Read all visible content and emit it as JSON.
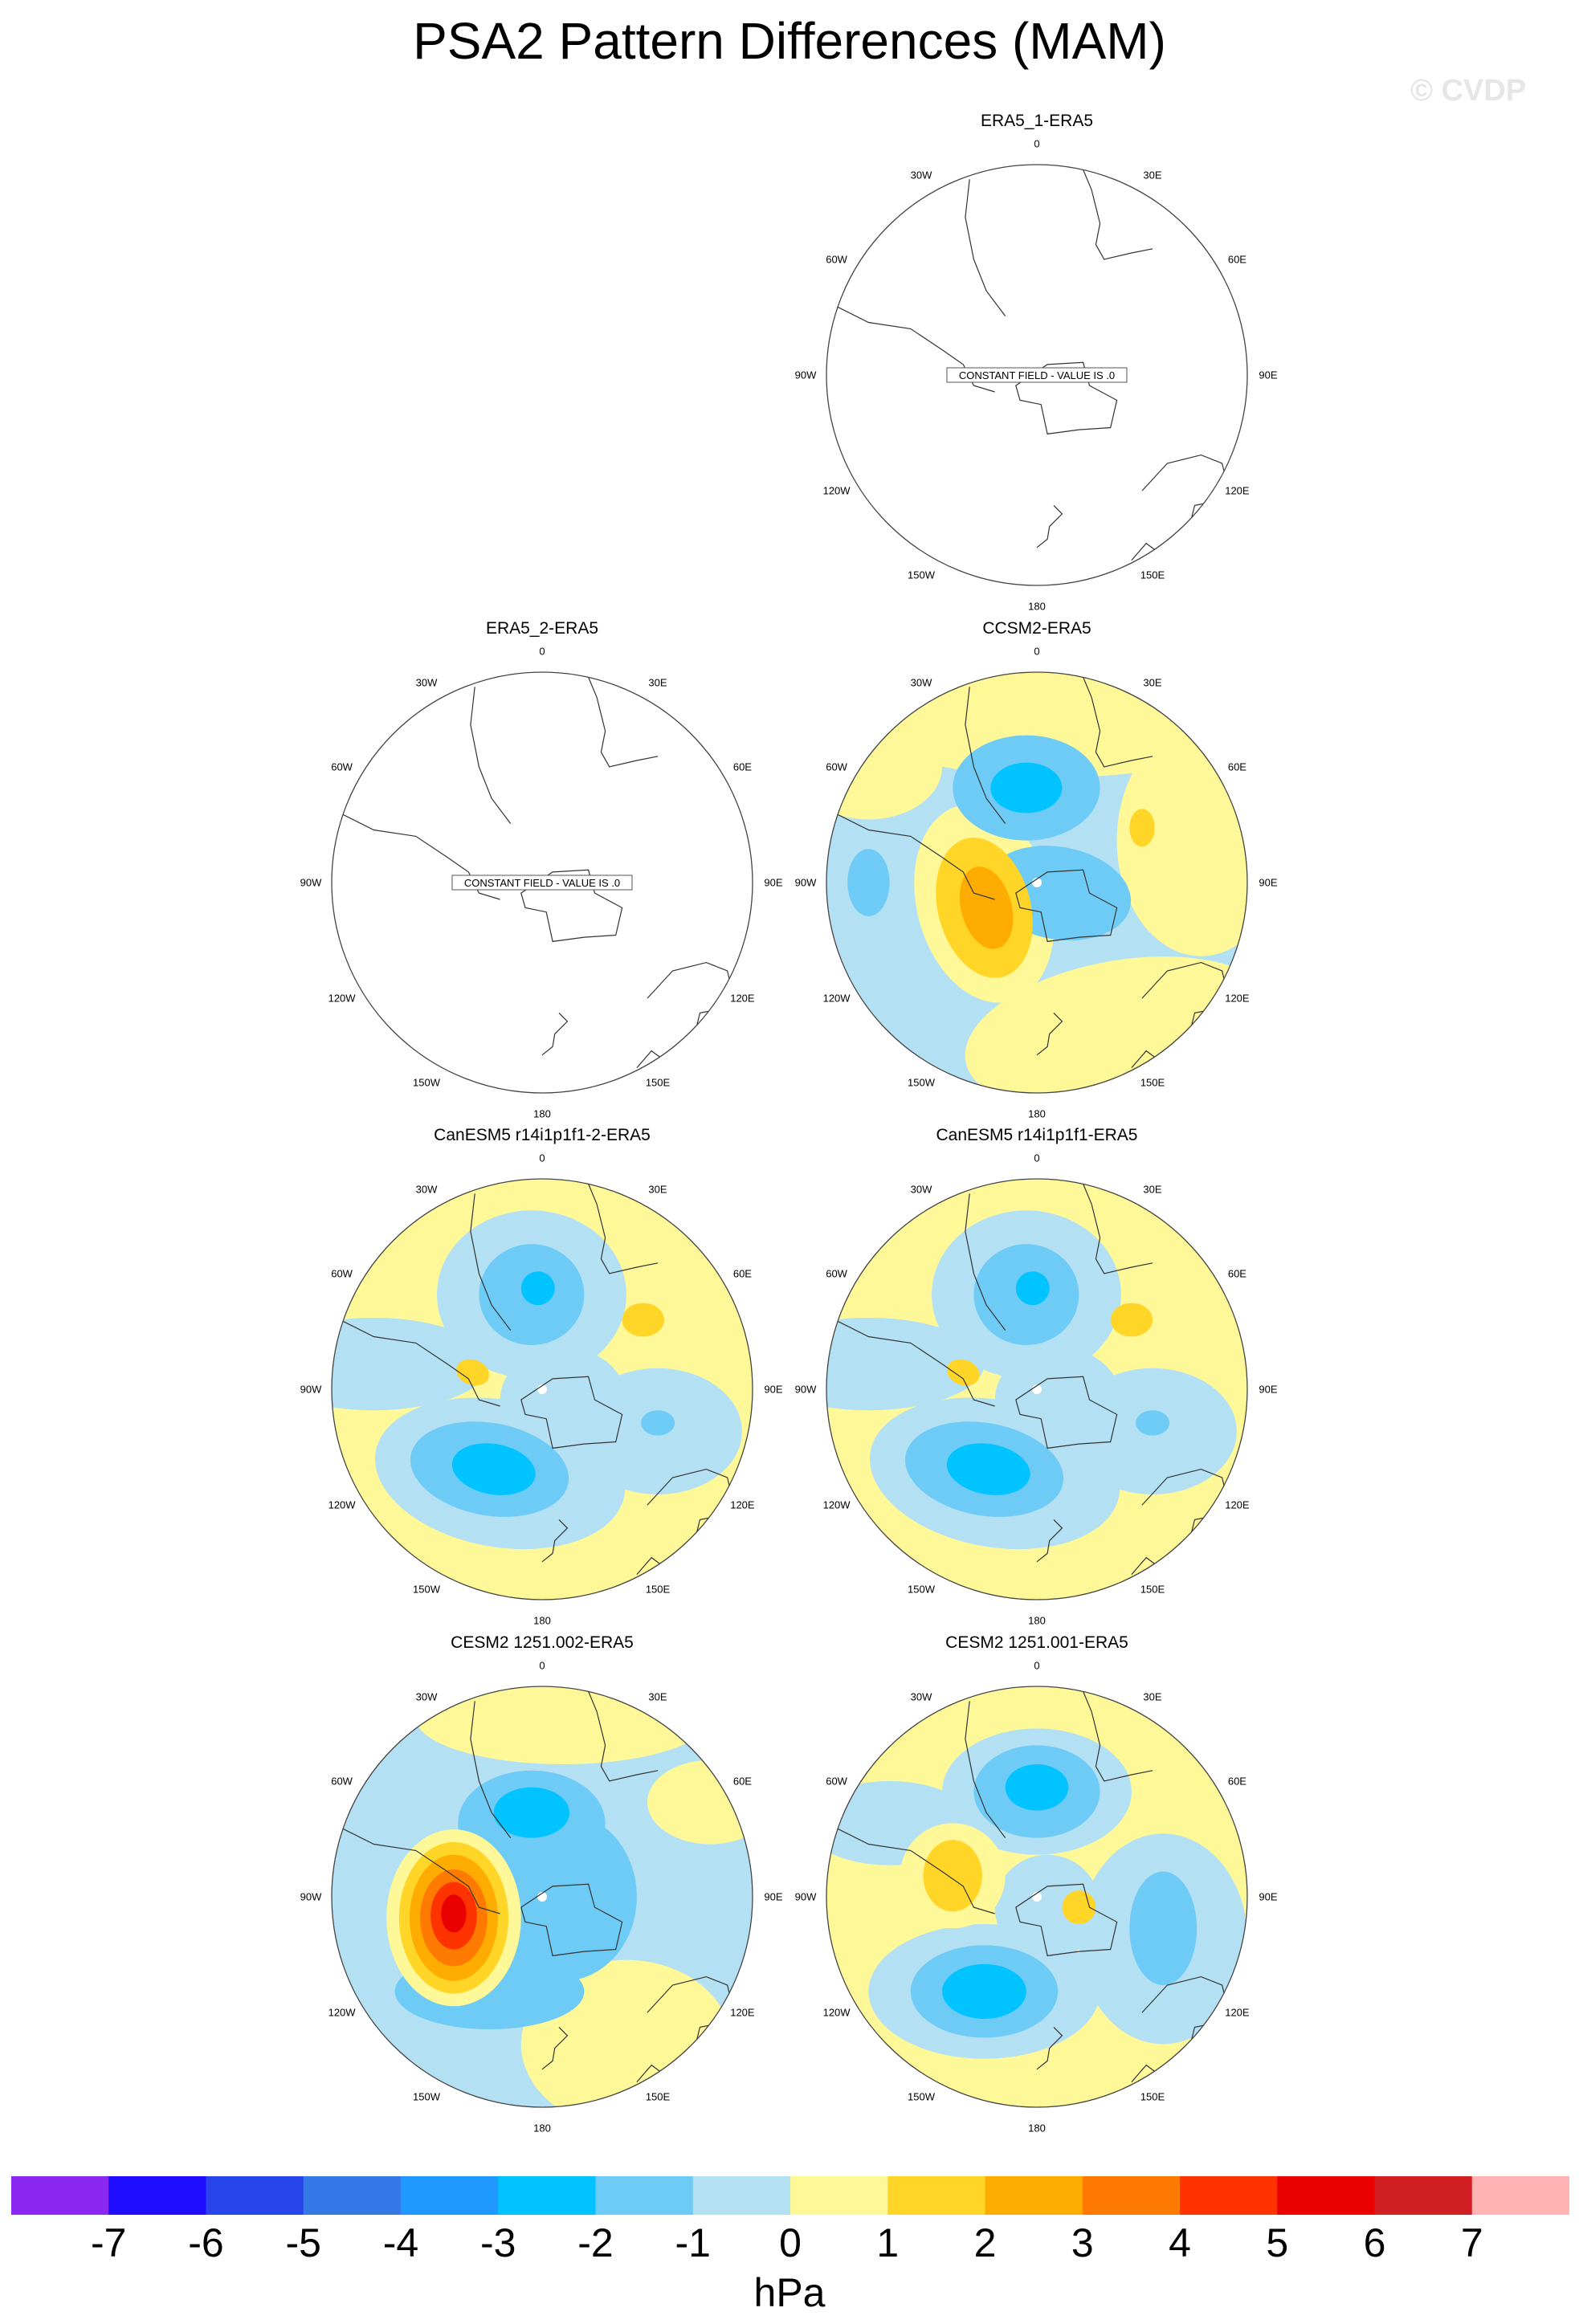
{
  "title": "PSA2 Pattern Differences (MAM)",
  "watermark": "© CVDP",
  "longitude_labels": [
    "0",
    "30E",
    "60E",
    "90E",
    "120E",
    "150E",
    "180",
    "150W",
    "120W",
    "90W",
    "60W",
    "30W"
  ],
  "constant_field_message": "CONSTANT FIELD - VALUE IS .0",
  "panels": [
    {
      "title": "ERA5_1-ERA5",
      "constant": true
    },
    {
      "title": "ERA5_2-ERA5",
      "constant": true
    },
    {
      "title": "CCSM2-ERA5",
      "constant": false
    },
    {
      "title": "CanESM5 r14i1p1f1-2-ERA5",
      "constant": false
    },
    {
      "title": "CanESM5 r14i1p1f1-ERA5",
      "constant": false
    },
    {
      "title": "CESM2 1251.002-ERA5",
      "constant": false
    },
    {
      "title": "CESM2 1251.001-ERA5",
      "constant": false
    }
  ],
  "colorbar": {
    "units": "hPa",
    "ticks": [
      "-7",
      "-6",
      "-5",
      "-4",
      "-3",
      "-2",
      "-1",
      "0",
      "1",
      "2",
      "3",
      "4",
      "5",
      "6",
      "7"
    ],
    "colors": [
      "#8a27f0",
      "#1f0dff",
      "#2845eb",
      "#3578e8",
      "#1f98ff",
      "#00c3ff",
      "#6ecbf5",
      "#b4e0f4",
      "#fff899",
      "#ffd628",
      "#ffac00",
      "#ff7a00",
      "#ff3300",
      "#eb0000",
      "#d21f23",
      "#ffb3b3"
    ]
  }
}
